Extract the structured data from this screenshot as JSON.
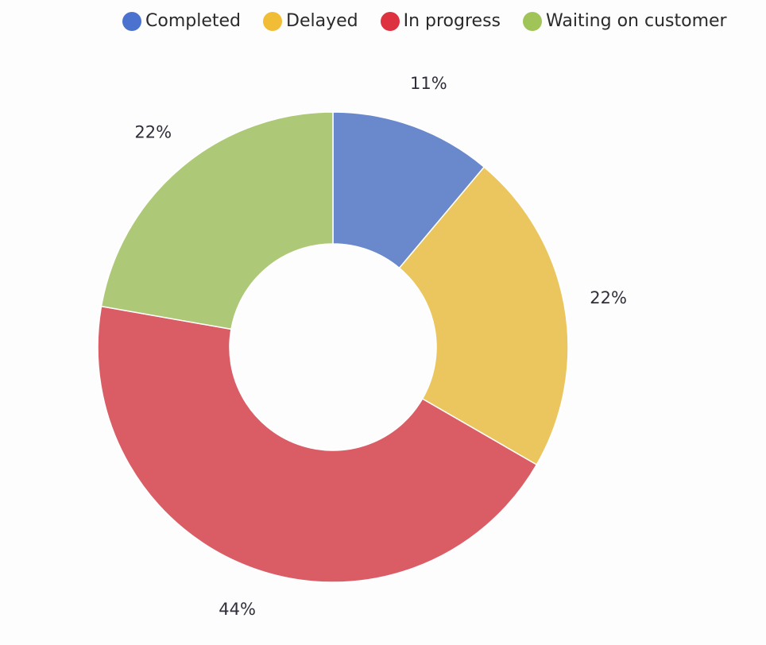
{
  "chart_data": {
    "type": "pie",
    "donut": true,
    "legend_position": "top",
    "series": [
      {
        "name": "Completed",
        "value": 11,
        "label": "11%",
        "color": "#6a88cc"
      },
      {
        "name": "Delayed",
        "value": 22,
        "label": "22%",
        "color": "#ebc65e"
      },
      {
        "name": "In progress",
        "value": 44,
        "label": "44%",
        "color": "#da5d66"
      },
      {
        "name": "Waiting on customer",
        "value": 22,
        "label": "22%",
        "color": "#adc977"
      }
    ],
    "legend_colors": [
      "#4b72cf",
      "#f2bd36",
      "#dd3240",
      "#a0c458"
    ]
  }
}
